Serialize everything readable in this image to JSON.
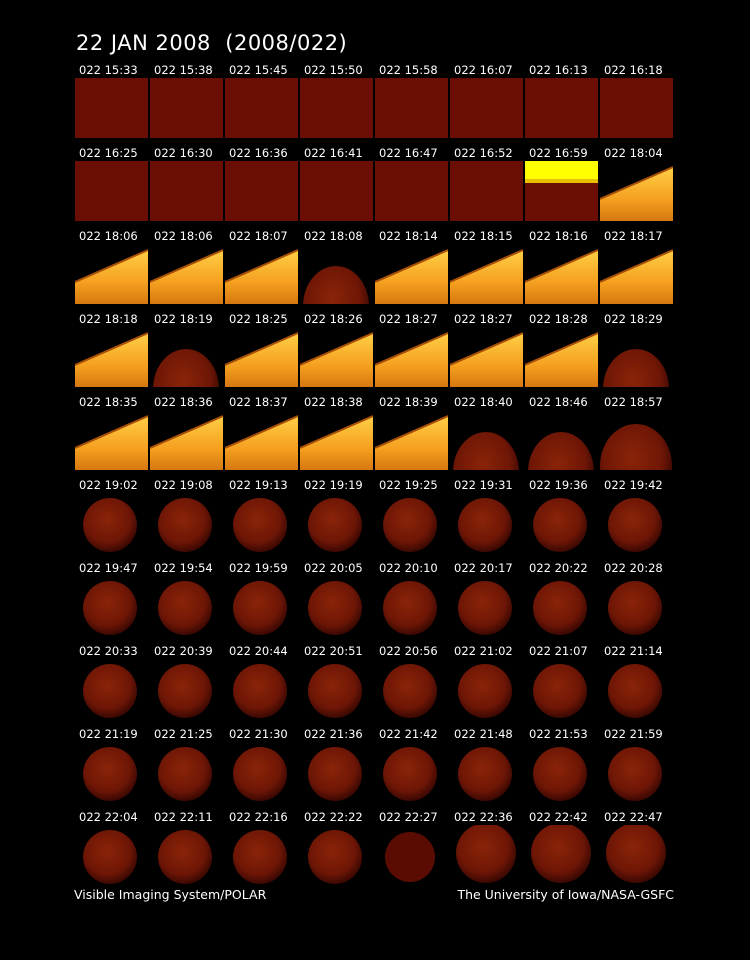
{
  "title": "22 JAN 2008  (2008/022)",
  "footer": {
    "left": "Visible Imaging System/POLAR",
    "right": "The University of Iowa/NASA-GSFC"
  },
  "rows": [
    {
      "labels": [
        "022 15:33",
        "022 15:38",
        "022 15:45",
        "022 15:50",
        "022 15:58",
        "022 16:07",
        "022 16:13",
        "022 16:18"
      ],
      "types": [
        "dark",
        "dark",
        "dark",
        "dark",
        "dark",
        "dark",
        "dark",
        "dark"
      ]
    },
    {
      "labels": [
        "022 16:25",
        "022 16:30",
        "022 16:36",
        "022 16:41",
        "022 16:47",
        "022 16:52",
        "022 16:59",
        "022 18:04"
      ],
      "types": [
        "dark",
        "dark",
        "dark",
        "dark",
        "dark",
        "dark",
        "sat",
        "slope"
      ]
    },
    {
      "labels": [
        "022 18:06",
        "022 18:06",
        "022 18:07",
        "022 18:08",
        "022 18:14",
        "022 18:15",
        "022 18:16",
        "022 18:17"
      ],
      "types": [
        "slope",
        "slope",
        "slope",
        "half",
        "slope",
        "slope",
        "slope",
        "slope"
      ]
    },
    {
      "labels": [
        "022 18:18",
        "022 18:19",
        "022 18:25",
        "022 18:26",
        "022 18:27",
        "022 18:27",
        "022 18:28",
        "022 18:29"
      ],
      "types": [
        "slope",
        "half",
        "slope",
        "slope",
        "slope",
        "slope",
        "slope",
        "half"
      ]
    },
    {
      "labels": [
        "022 18:35",
        "022 18:36",
        "022 18:37",
        "022 18:38",
        "022 18:39",
        "022 18:40",
        "022 18:46",
        "022 18:57"
      ],
      "types": [
        "slope",
        "slope",
        "slope",
        "slope",
        "slope",
        "half",
        "half",
        "halfbig"
      ]
    },
    {
      "labels": [
        "022 19:02",
        "022 19:08",
        "022 19:13",
        "022 19:19",
        "022 19:25",
        "022 19:31",
        "022 19:36",
        "022 19:42"
      ],
      "types": [
        "earth",
        "earth",
        "earth",
        "earth",
        "earth",
        "earth",
        "earth",
        "earth"
      ]
    },
    {
      "labels": [
        "022 19:47",
        "022 19:54",
        "022 19:59",
        "022 20:05",
        "022 20:10",
        "022 20:17",
        "022 20:22",
        "022 20:28"
      ],
      "types": [
        "earth",
        "earth",
        "earth",
        "earth",
        "earth",
        "earth",
        "earth",
        "earth"
      ]
    },
    {
      "labels": [
        "022 20:33",
        "022 20:39",
        "022 20:44",
        "022 20:51",
        "022 20:56",
        "022 21:02",
        "022 21:07",
        "022 21:14"
      ],
      "types": [
        "earth",
        "earth",
        "earth",
        "earth",
        "earth",
        "earth",
        "earth",
        "earth"
      ]
    },
    {
      "labels": [
        "022 21:19",
        "022 21:25",
        "022 21:30",
        "022 21:36",
        "022 21:42",
        "022 21:48",
        "022 21:53",
        "022 21:59"
      ],
      "types": [
        "earth",
        "earth",
        "earth",
        "earth",
        "earth",
        "earth",
        "earth",
        "earth"
      ]
    },
    {
      "labels": [
        "022 22:04",
        "022 22:11",
        "022 22:16",
        "022 22:22",
        "022 22:27",
        "022 22:36",
        "022 22:42",
        "022 22:47"
      ],
      "types": [
        "earth",
        "earth",
        "earth",
        "earth",
        "earthdark",
        "earthbig",
        "earthbig",
        "earthbig"
      ]
    }
  ],
  "colors": {
    "background": "#000000",
    "dark_frame": "#6a0d05",
    "saturated": "#ffff00",
    "slope_fill": "#f5a020",
    "earth_fill": "#6e1606"
  }
}
